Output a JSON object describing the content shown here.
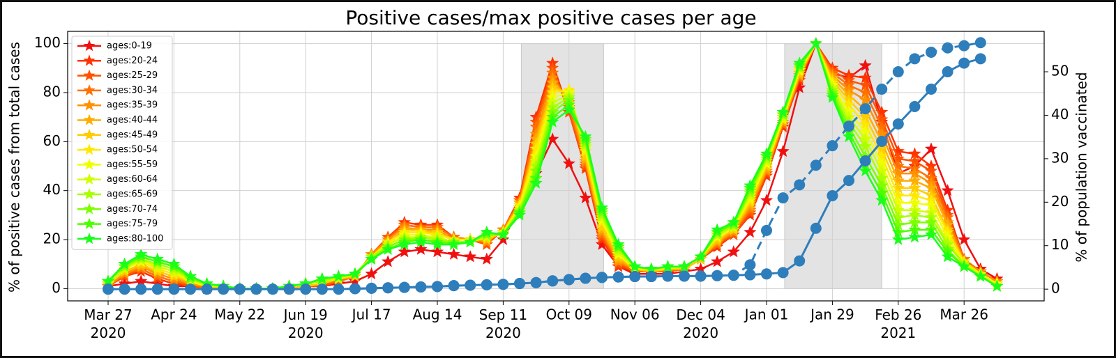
{
  "chart_data": {
    "type": "line",
    "title": "Positive cases/max positive cases per age",
    "ylabel": "% of positive cases from total cases",
    "y2label": "% of population vaccinated",
    "y2_color": "#2e7ebc",
    "categories": [
      "Mar 27\n2020",
      null,
      null,
      null,
      "Apr 24",
      null,
      null,
      null,
      "May 22",
      null,
      null,
      null,
      "Jun 19\n2020",
      null,
      null,
      null,
      "Jul 17",
      null,
      null,
      null,
      "Aug 14",
      null,
      null,
      null,
      "Sep 11\n2020",
      null,
      null,
      null,
      "Oct 09",
      null,
      null,
      null,
      "Nov 06",
      null,
      null,
      null,
      "Dec 04\n2020",
      null,
      null,
      null,
      "Jan 01",
      null,
      null,
      null,
      "Jan 29",
      null,
      null,
      null,
      "Feb 26\n2021",
      null,
      null,
      null,
      "Mar 26",
      null,
      null
    ],
    "ylim": [
      -5,
      105
    ],
    "yticks": [
      0,
      20,
      40,
      60,
      80,
      100
    ],
    "y2lim": [
      -2.7,
      59.3
    ],
    "y2ticks": [
      0,
      10,
      20,
      30,
      40,
      50
    ],
    "grid": true,
    "legend": "upper left",
    "shaded_regions": [
      {
        "x": [
          25.1,
          30.1
        ],
        "y": [
          0,
          100
        ],
        "color": "#e3e3e3"
      },
      {
        "x": [
          41.1,
          47.0
        ],
        "y": [
          0,
          100
        ],
        "color": "#e3e3e3"
      }
    ],
    "series": [
      {
        "name": "ages:0-19",
        "color": "#f01010",
        "values": [
          1,
          2,
          3,
          2,
          1,
          1,
          0,
          0,
          0,
          0,
          0,
          0,
          1,
          1,
          2,
          3,
          6,
          11,
          15,
          16,
          15,
          14,
          13,
          12,
          20,
          33,
          47,
          61,
          51,
          37,
          18,
          9,
          6,
          6,
          6,
          7,
          8,
          11,
          15,
          23,
          36,
          56,
          82,
          100,
          88,
          86,
          91,
          68,
          47,
          50,
          57,
          40,
          20,
          8,
          4
        ]
      },
      {
        "name": "ages:20-24",
        "color": "#ff3300",
        "values": [
          1,
          5,
          7,
          4,
          2,
          1,
          0,
          0,
          0,
          0,
          0,
          0,
          1,
          1,
          3,
          5,
          14,
          21,
          27,
          26,
          26,
          21,
          20,
          18,
          24,
          37,
          70,
          92,
          72,
          49,
          20,
          9,
          7,
          7,
          7,
          8,
          12,
          17,
          22,
          30,
          46,
          66,
          85,
          100,
          90,
          87,
          86,
          72,
          56,
          55,
          50,
          32,
          12,
          7,
          3
        ]
      },
      {
        "name": "ages:25-29",
        "color": "#ff5200",
        "values": [
          1,
          5,
          8,
          5,
          3,
          1,
          0,
          0,
          0,
          0,
          0,
          0,
          1,
          1,
          3,
          5,
          14,
          21,
          26,
          25,
          25,
          21,
          20,
          18,
          24,
          36,
          68,
          90,
          72,
          50,
          21,
          10,
          7,
          7,
          7,
          8,
          12,
          18,
          22,
          31,
          47,
          67,
          86,
          100,
          89,
          85,
          83,
          69,
          53,
          52,
          48,
          30,
          12,
          7,
          3
        ]
      },
      {
        "name": "ages:30-34",
        "color": "#ff7000",
        "values": [
          1,
          6,
          8,
          5,
          3,
          2,
          0,
          0,
          0,
          0,
          0,
          0,
          1,
          2,
          3,
          5,
          14,
          20,
          26,
          25,
          25,
          21,
          20,
          19,
          24,
          36,
          66,
          88,
          74,
          51,
          22,
          11,
          7,
          7,
          7,
          8,
          12,
          18,
          23,
          32,
          48,
          67,
          86,
          100,
          88,
          83,
          80,
          66,
          50,
          49,
          45,
          29,
          12,
          7,
          3
        ]
      },
      {
        "name": "ages:35-39",
        "color": "#ff9000",
        "values": [
          1,
          6,
          9,
          6,
          4,
          2,
          1,
          0,
          0,
          0,
          0,
          0,
          1,
          2,
          4,
          5,
          14,
          20,
          25,
          24,
          24,
          20,
          20,
          19,
          24,
          35,
          63,
          86,
          76,
          52,
          23,
          11,
          8,
          7,
          8,
          8,
          12,
          19,
          23,
          33,
          48,
          68,
          87,
          100,
          87,
          81,
          77,
          63,
          47,
          47,
          43,
          27,
          11,
          7,
          3
        ]
      },
      {
        "name": "ages:40-44",
        "color": "#ffad00",
        "values": [
          2,
          7,
          9,
          7,
          5,
          2,
          1,
          0,
          0,
          0,
          0,
          0,
          1,
          2,
          4,
          5,
          13,
          19,
          24,
          24,
          23,
          20,
          20,
          20,
          23,
          35,
          61,
          84,
          78,
          53,
          24,
          12,
          8,
          7,
          8,
          8,
          12,
          19,
          24,
          34,
          49,
          68,
          87,
          100,
          86,
          79,
          73,
          60,
          44,
          44,
          41,
          26,
          11,
          6,
          2
        ]
      },
      {
        "name": "ages:45-49",
        "color": "#ffcc00",
        "values": [
          2,
          7,
          10,
          7,
          5,
          3,
          1,
          0,
          0,
          0,
          0,
          0,
          1,
          2,
          4,
          5,
          13,
          19,
          23,
          23,
          23,
          20,
          20,
          20,
          23,
          34,
          59,
          82,
          80,
          54,
          25,
          13,
          8,
          7,
          8,
          8,
          12,
          20,
          24,
          35,
          50,
          69,
          88,
          100,
          85,
          77,
          70,
          57,
          41,
          41,
          38,
          24,
          11,
          6,
          2
        ]
      },
      {
        "name": "ages:50-54",
        "color": "#ffe800",
        "values": [
          2,
          8,
          11,
          8,
          6,
          3,
          1,
          1,
          0,
          0,
          0,
          1,
          2,
          3,
          4,
          6,
          13,
          19,
          23,
          23,
          22,
          20,
          20,
          21,
          23,
          34,
          57,
          80,
          81,
          56,
          27,
          14,
          8,
          8,
          8,
          9,
          13,
          21,
          25,
          36,
          51,
          69,
          89,
          100,
          84,
          75,
          67,
          54,
          38,
          38,
          36,
          23,
          11,
          6,
          2
        ]
      },
      {
        "name": "ages:55-59",
        "color": "#f0ff00",
        "values": [
          2,
          8,
          11,
          9,
          7,
          3,
          1,
          1,
          0,
          0,
          0,
          1,
          2,
          3,
          4,
          6,
          13,
          18,
          22,
          22,
          21,
          19,
          19,
          21,
          23,
          33,
          54,
          78,
          80,
          57,
          28,
          14,
          8,
          8,
          8,
          9,
          13,
          21,
          25,
          37,
          51,
          70,
          89,
          100,
          83,
          72,
          64,
          51,
          35,
          35,
          34,
          21,
          10,
          6,
          2
        ]
      },
      {
        "name": "ages:60-64",
        "color": "#cfff00",
        "values": [
          2,
          8,
          12,
          9,
          7,
          4,
          1,
          1,
          0,
          0,
          0,
          1,
          2,
          3,
          4,
          6,
          13,
          18,
          21,
          21,
          21,
          19,
          19,
          21,
          23,
          32,
          52,
          76,
          79,
          58,
          29,
          15,
          8,
          8,
          8,
          9,
          13,
          22,
          25,
          38,
          52,
          70,
          90,
          100,
          82,
          70,
          61,
          48,
          32,
          32,
          31,
          19,
          10,
          6,
          1
        ]
      },
      {
        "name": "ages:65-69",
        "color": "#a8ff00",
        "values": [
          3,
          9,
          12,
          10,
          8,
          4,
          2,
          1,
          0,
          0,
          0,
          1,
          2,
          3,
          5,
          6,
          13,
          17,
          20,
          21,
          20,
          19,
          19,
          22,
          22,
          32,
          50,
          74,
          78,
          59,
          30,
          16,
          9,
          8,
          9,
          9,
          13,
          22,
          26,
          39,
          53,
          71,
          90,
          100,
          81,
          68,
          58,
          45,
          29,
          30,
          29,
          18,
          10,
          5,
          1
        ]
      },
      {
        "name": "ages:70-74",
        "color": "#7dff00",
        "values": [
          3,
          9,
          13,
          11,
          9,
          4,
          2,
          1,
          0,
          0,
          0,
          1,
          2,
          4,
          5,
          6,
          12,
          17,
          20,
          20,
          19,
          19,
          19,
          22,
          22,
          31,
          48,
          72,
          77,
          60,
          31,
          17,
          9,
          8,
          9,
          9,
          13,
          23,
          26,
          40,
          54,
          71,
          91,
          100,
          80,
          66,
          54,
          42,
          26,
          27,
          27,
          16,
          9,
          5,
          1
        ]
      },
      {
        "name": "ages:75-79",
        "color": "#4cff00",
        "values": [
          3,
          10,
          13,
          11,
          9,
          5,
          2,
          1,
          0,
          0,
          0,
          1,
          2,
          4,
          5,
          6,
          12,
          16,
          19,
          20,
          19,
          18,
          19,
          23,
          22,
          31,
          45,
          70,
          75,
          61,
          32,
          17,
          9,
          8,
          9,
          9,
          13,
          23,
          27,
          41,
          54,
          72,
          91,
          100,
          79,
          64,
          51,
          39,
          23,
          24,
          24,
          15,
          9,
          5,
          1
        ]
      },
      {
        "name": "ages:80-100",
        "color": "#1aff1a",
        "values": [
          3,
          10,
          14,
          12,
          10,
          5,
          2,
          1,
          0,
          0,
          0,
          1,
          2,
          4,
          5,
          6,
          12,
          16,
          18,
          19,
          18,
          18,
          19,
          23,
          22,
          30,
          43,
          68,
          73,
          62,
          33,
          18,
          9,
          8,
          9,
          9,
          13,
          24,
          27,
          42,
          55,
          72,
          92,
          100,
          78,
          62,
          48,
          36,
          20,
          21,
          22,
          13,
          9,
          5,
          1
        ]
      },
      {
        "color": "#2e7ebc",
        "axis": "y2",
        "linestyle": "dashed",
        "values": [
          0,
          0,
          0,
          0,
          0,
          0,
          0,
          0,
          0,
          0,
          0,
          0,
          0,
          0,
          0,
          0.1,
          0.2,
          0.3,
          0.4,
          0.5,
          0.6,
          0.8,
          0.9,
          1.0,
          1.1,
          1.3,
          1.5,
          1.9,
          2.2,
          2.5,
          2.7,
          2.8,
          2.9,
          2.9,
          3.0,
          3.0,
          3.0,
          3.1,
          3.2,
          5.6,
          13.5,
          21,
          24,
          28.5,
          33,
          37.5,
          41.5,
          46,
          50,
          53,
          54.5,
          55.5,
          56,
          56.7,
          null
        ]
      },
      {
        "color": "#2e7ebc",
        "axis": "y2",
        "linestyle": "solid",
        "values": [
          0,
          0,
          0,
          0,
          0,
          0,
          0,
          0,
          0,
          0,
          0,
          0,
          0,
          0,
          0,
          0.1,
          0.2,
          0.3,
          0.4,
          0.5,
          0.6,
          0.8,
          0.9,
          1.0,
          1.1,
          1.3,
          1.5,
          1.9,
          2.2,
          2.5,
          2.7,
          2.8,
          2.9,
          2.9,
          3.0,
          3.0,
          3.0,
          3.1,
          3.2,
          3.3,
          3.5,
          3.8,
          6.5,
          14,
          21.5,
          25,
          29.5,
          34,
          38,
          42,
          46,
          50,
          52,
          53,
          null
        ]
      }
    ]
  }
}
